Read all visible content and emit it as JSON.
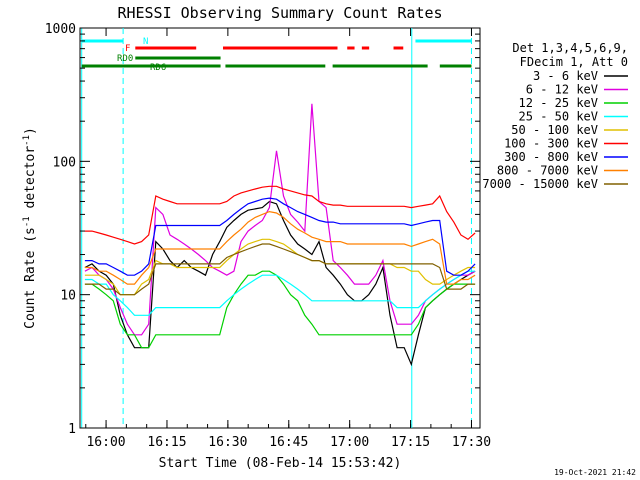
{
  "chart_data": {
    "type": "line",
    "title": "RHESSI Observing Summary Count Rates",
    "xlabel": "Start Time (08-Feb-14 15:53:42)",
    "ylabel_main": "Count Rate (s",
    "ylabel_exp1": "-1",
    "ylabel_mid": " detector",
    "ylabel_exp2": "-1",
    "ylabel_end": ")",
    "yscale": "log",
    "ylim": [
      1,
      1000
    ],
    "xlim": [
      15.893,
      17.535
    ],
    "x_ticks": [
      {
        "label": "16:00",
        "value": 16.0
      },
      {
        "label": "16:15",
        "value": 16.25
      },
      {
        "label": "16:30",
        "value": 16.5
      },
      {
        "label": "16:45",
        "value": 16.75
      },
      {
        "label": "17:00",
        "value": 17.0
      },
      {
        "label": "17:15",
        "value": 17.25
      },
      {
        "label": "17:30",
        "value": 17.5
      }
    ],
    "y_ticks": [
      {
        "label": "1",
        "value": 1
      },
      {
        "label": "10",
        "value": 10
      },
      {
        "label": "100",
        "value": 100
      },
      {
        "label": "1000",
        "value": 1000
      }
    ],
    "legend_header": [
      "Det 1,3,4,5,6,9,",
      "FDecim 1, Att 0"
    ],
    "legend_position": "right",
    "timestamp": "19-Oct-2021 21:42",
    "series": [
      {
        "name": "3 - 6 keV",
        "color": "#000000",
        "values": [
          16,
          17,
          15,
          14,
          12,
          7,
          5,
          4,
          4,
          4,
          25,
          22,
          18,
          16,
          18,
          16,
          15,
          14,
          20,
          25,
          32,
          36,
          40,
          43,
          44,
          45,
          50,
          48,
          36,
          28,
          24,
          22,
          20,
          25,
          16,
          14,
          12,
          10,
          9,
          9,
          10,
          12,
          16,
          7,
          4,
          4,
          3,
          5,
          8,
          9,
          10,
          11,
          12,
          13,
          14,
          15
        ]
      },
      {
        "name": "6 - 12 keV",
        "color": "#e000e0",
        "values": [
          15,
          16,
          14,
          13,
          11,
          8,
          6,
          5,
          5,
          6,
          45,
          40,
          28,
          26,
          24,
          22,
          20,
          18,
          16,
          15,
          14,
          15,
          25,
          30,
          33,
          36,
          45,
          120,
          55,
          40,
          35,
          30,
          270,
          50,
          45,
          18,
          16,
          14,
          12,
          12,
          12,
          14,
          18,
          9,
          6,
          6,
          6,
          7,
          9,
          10,
          11,
          12,
          13,
          14,
          14,
          15
        ]
      },
      {
        "name": "12 - 25 keV",
        "color": "#00d000",
        "values": [
          12,
          12,
          11,
          10,
          9,
          6,
          5,
          5,
          4,
          4,
          5,
          5,
          5,
          5,
          5,
          5,
          5,
          5,
          5,
          5,
          8,
          10,
          12,
          14,
          14,
          15,
          15,
          14,
          12,
          10,
          9,
          7,
          6,
          5,
          5,
          5,
          5,
          5,
          5,
          5,
          5,
          5,
          5,
          5,
          5,
          5,
          5,
          6,
          8,
          9,
          10,
          11,
          12,
          12,
          12,
          12
        ]
      },
      {
        "name": "25 - 50 keV",
        "color": "#00ffff",
        "values": [
          13,
          13,
          12,
          12,
          10,
          9,
          8,
          7,
          7,
          7,
          8,
          8,
          8,
          8,
          8,
          8,
          8,
          8,
          8,
          8,
          9,
          10,
          11,
          12,
          13,
          14,
          14,
          14,
          13,
          12,
          11,
          10,
          9,
          9,
          9,
          9,
          9,
          9,
          9,
          9,
          9,
          9,
          9,
          9,
          8,
          8,
          8,
          8,
          9,
          10,
          11,
          12,
          13,
          14,
          15,
          15
        ]
      },
      {
        "name": "50 - 100 keV",
        "color": "#e0c000",
        "values": [
          14,
          14,
          14,
          13,
          12,
          10,
          10,
          10,
          12,
          13,
          18,
          17,
          17,
          16,
          16,
          16,
          16,
          16,
          16,
          16,
          18,
          20,
          22,
          24,
          25,
          26,
          26,
          25,
          24,
          22,
          20,
          19,
          18,
          18,
          17,
          17,
          17,
          17,
          17,
          17,
          17,
          17,
          17,
          17,
          16,
          16,
          15,
          15,
          13,
          12,
          12,
          13,
          14,
          15,
          16,
          16
        ]
      },
      {
        "name": "100 - 300 keV",
        "color": "#ff0000",
        "values": [
          30,
          30,
          29,
          28,
          27,
          26,
          25,
          24,
          25,
          28,
          55,
          52,
          50,
          48,
          48,
          48,
          48,
          48,
          48,
          48,
          50,
          55,
          58,
          60,
          62,
          64,
          65,
          65,
          62,
          60,
          58,
          56,
          55,
          50,
          48,
          47,
          47,
          46,
          46,
          46,
          46,
          46,
          46,
          46,
          46,
          46,
          45,
          46,
          47,
          48,
          55,
          42,
          35,
          28,
          26,
          29
        ]
      },
      {
        "name": "300 - 800 keV",
        "color": "#0000ff",
        "values": [
          18,
          18,
          17,
          17,
          16,
          15,
          14,
          14,
          15,
          17,
          33,
          33,
          33,
          33,
          33,
          33,
          33,
          33,
          33,
          33,
          36,
          40,
          44,
          48,
          50,
          52,
          53,
          52,
          48,
          45,
          42,
          40,
          38,
          36,
          35,
          35,
          34,
          34,
          34,
          34,
          34,
          34,
          34,
          34,
          34,
          34,
          33,
          34,
          35,
          36,
          36,
          15,
          14,
          14,
          15,
          17
        ]
      },
      {
        "name": "800 - 7000 keV",
        "color": "#ff8000",
        "values": [
          16,
          16,
          15,
          15,
          14,
          13,
          12,
          12,
          14,
          16,
          22,
          22,
          22,
          22,
          22,
          22,
          22,
          22,
          22,
          22,
          25,
          28,
          31,
          35,
          38,
          40,
          42,
          41,
          38,
          34,
          31,
          29,
          27,
          26,
          25,
          25,
          25,
          24,
          24,
          24,
          24,
          24,
          24,
          24,
          24,
          24,
          23,
          24,
          25,
          26,
          24,
          12,
          12,
          13,
          13,
          14
        ]
      },
      {
        "name": "7000 - 15000 keV",
        "color": "#806000",
        "values": [
          12,
          12,
          12,
          11,
          11,
          10,
          10,
          10,
          11,
          12,
          17,
          17,
          17,
          17,
          17,
          17,
          17,
          17,
          17,
          17,
          19,
          20,
          21,
          22,
          23,
          24,
          24,
          23,
          22,
          21,
          20,
          19,
          18,
          18,
          17,
          17,
          17,
          17,
          17,
          17,
          17,
          17,
          17,
          17,
          17,
          17,
          17,
          17,
          17,
          17,
          16,
          11,
          11,
          11,
          12,
          12
        ]
      }
    ],
    "status_bars": [
      {
        "label": "N",
        "color": "#00ffff",
        "segments": [
          [
            15.9,
            16.07
          ],
          [
            17.27,
            17.5
          ]
        ]
      },
      {
        "label": "F",
        "color": "#ff0000",
        "segments": [
          [
            16.12,
            16.37
          ],
          [
            16.48,
            16.95
          ],
          [
            16.99,
            17.02
          ],
          [
            17.05,
            17.08
          ],
          [
            17.18,
            17.22
          ]
        ]
      },
      {
        "label": "RD0",
        "color": "#008000",
        "segments": [
          [
            16.12,
            16.47
          ]
        ]
      },
      {
        "label": "RD6",
        "color": "#008000",
        "segments": [
          [
            15.9,
            16.47
          ],
          [
            16.49,
            16.9
          ],
          [
            16.93,
            17.32
          ],
          [
            17.37,
            17.5
          ]
        ]
      }
    ],
    "vertical_markers": [
      {
        "style": "solid",
        "color": "#00ffff",
        "x": 15.9
      },
      {
        "style": "dashed",
        "color": "#00ffff",
        "x": 16.07
      },
      {
        "style": "solid",
        "color": "#00ffff",
        "x": 17.255
      },
      {
        "style": "dashed",
        "color": "#00ffff",
        "x": 17.5
      }
    ]
  }
}
